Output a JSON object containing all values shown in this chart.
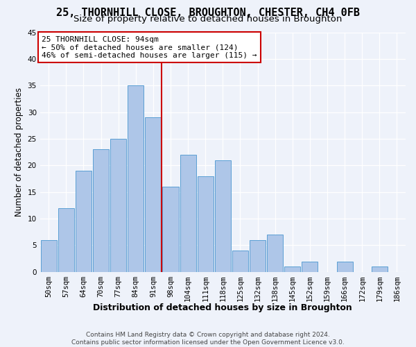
{
  "title": "25, THORNHILL CLOSE, BROUGHTON, CHESTER, CH4 0FB",
  "subtitle": "Size of property relative to detached houses in Broughton",
  "xlabel_bottom": "Distribution of detached houses by size in Broughton",
  "ylabel": "Number of detached properties",
  "bar_labels": [
    "50sqm",
    "57sqm",
    "64sqm",
    "70sqm",
    "77sqm",
    "84sqm",
    "91sqm",
    "98sqm",
    "104sqm",
    "111sqm",
    "118sqm",
    "125sqm",
    "132sqm",
    "138sqm",
    "145sqm",
    "152sqm",
    "159sqm",
    "166sqm",
    "172sqm",
    "179sqm",
    "186sqm"
  ],
  "bar_values": [
    6,
    12,
    19,
    23,
    25,
    35,
    29,
    16,
    22,
    18,
    21,
    4,
    6,
    7,
    1,
    2,
    0,
    2,
    0,
    1,
    0
  ],
  "bar_color": "#aec6e8",
  "bar_edge_color": "#5a9fd4",
  "vline_x": 6.5,
  "vline_color": "#cc0000",
  "annotation_line1": "25 THORNHILL CLOSE: 94sqm",
  "annotation_line2": "← 50% of detached houses are smaller (124)",
  "annotation_line3": "46% of semi-detached houses are larger (115) →",
  "annotation_box_color": "#ffffff",
  "annotation_box_edge": "#cc0000",
  "ylim": [
    0,
    45
  ],
  "yticks": [
    0,
    5,
    10,
    15,
    20,
    25,
    30,
    35,
    40,
    45
  ],
  "footnote": "Contains HM Land Registry data © Crown copyright and database right 2024.\nContains public sector information licensed under the Open Government Licence v3.0.",
  "background_color": "#eef2fa",
  "grid_color": "#ffffff",
  "title_fontsize": 11,
  "subtitle_fontsize": 9.5,
  "ylabel_fontsize": 8.5,
  "tick_fontsize": 7.5,
  "annotation_fontsize": 8,
  "footnote_fontsize": 6.5,
  "xlabel_fontsize": 9
}
